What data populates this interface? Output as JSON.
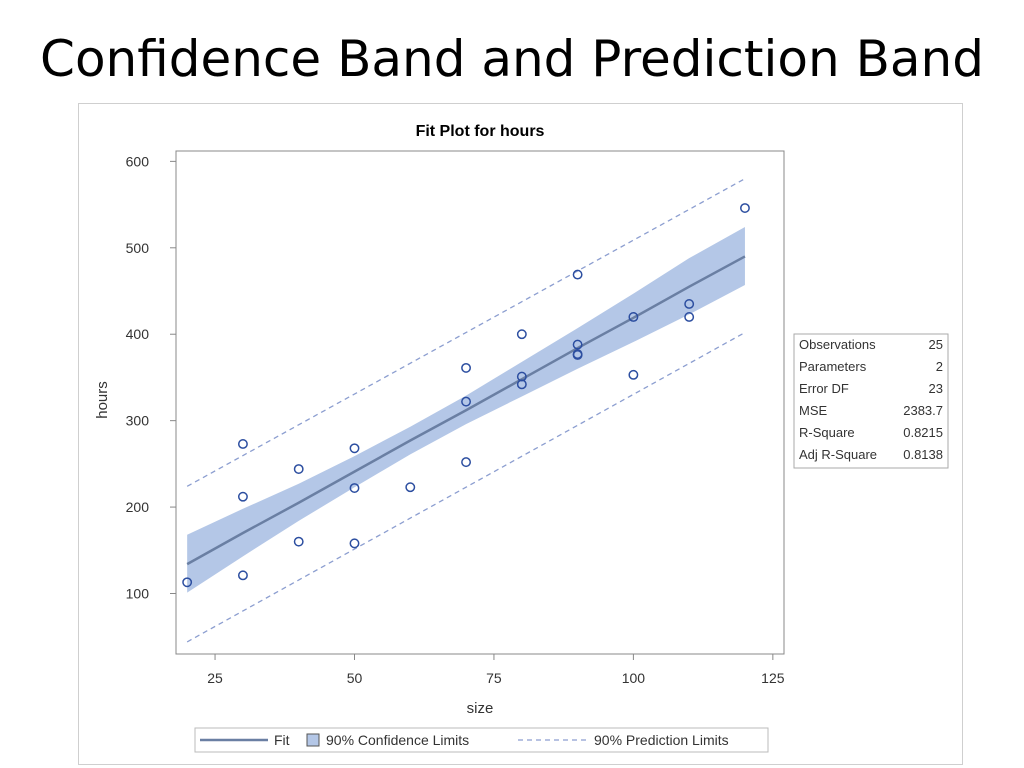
{
  "slide": {
    "title": "Confidence Band and Prediction Band"
  },
  "chart_data": {
    "type": "scatter",
    "title": "Fit Plot for hours",
    "xlabel": "size",
    "ylabel": "hours",
    "xlim": [
      18,
      127
    ],
    "ylim": [
      30,
      612
    ],
    "x_ticks": [
      25,
      50,
      75,
      100,
      125
    ],
    "y_ticks": [
      100,
      200,
      300,
      400,
      500,
      600
    ],
    "grid": false,
    "points": [
      {
        "x": 20,
        "y": 113
      },
      {
        "x": 30,
        "y": 273
      },
      {
        "x": 30,
        "y": 212
      },
      {
        "x": 30,
        "y": 121
      },
      {
        "x": 40,
        "y": 244
      },
      {
        "x": 40,
        "y": 160
      },
      {
        "x": 50,
        "y": 268
      },
      {
        "x": 50,
        "y": 222
      },
      {
        "x": 50,
        "y": 158
      },
      {
        "x": 60,
        "y": 223
      },
      {
        "x": 70,
        "y": 361
      },
      {
        "x": 70,
        "y": 322
      },
      {
        "x": 70,
        "y": 252
      },
      {
        "x": 80,
        "y": 400
      },
      {
        "x": 80,
        "y": 351
      },
      {
        "x": 80,
        "y": 342
      },
      {
        "x": 90,
        "y": 469
      },
      {
        "x": 90,
        "y": 388
      },
      {
        "x": 90,
        "y": 377
      },
      {
        "x": 90,
        "y": 376
      },
      {
        "x": 100,
        "y": 420
      },
      {
        "x": 100,
        "y": 353
      },
      {
        "x": 110,
        "y": 435
      },
      {
        "x": 110,
        "y": 420
      },
      {
        "x": 120,
        "y": 546
      }
    ],
    "fit": {
      "x": [
        20,
        30,
        40,
        50,
        60,
        70,
        80,
        90,
        100,
        110,
        120
      ],
      "y": [
        134,
        170,
        205,
        241,
        277,
        312,
        348,
        384,
        419,
        455,
        490
      ]
    },
    "confidence_band": {
      "x": [
        20,
        30,
        40,
        50,
        60,
        70,
        80,
        90,
        100,
        110,
        120
      ],
      "lower": [
        101,
        143,
        184,
        223,
        261,
        296,
        328,
        360,
        391,
        423,
        457
      ],
      "upper": [
        168,
        198,
        227,
        259,
        293,
        329,
        368,
        407,
        447,
        488,
        524
      ]
    },
    "prediction_band": {
      "x": [
        20,
        120
      ],
      "lower": [
        44,
        402
      ],
      "upper": [
        224,
        580
      ]
    },
    "fit_statistics": [
      {
        "label": "Observations",
        "value": "25"
      },
      {
        "label": "Parameters",
        "value": "2"
      },
      {
        "label": "Error DF",
        "value": "23"
      },
      {
        "label": "MSE",
        "value": "2383.7"
      },
      {
        "label": "R-Square",
        "value": "0.8215"
      },
      {
        "label": "Adj R-Square",
        "value": "0.8138"
      }
    ],
    "legend": {
      "position": "bottom",
      "entries": [
        {
          "label": "Fit",
          "style": "solid-line"
        },
        {
          "label": "90% Confidence Limits",
          "style": "filled-band"
        },
        {
          "label": "90% Prediction Limits",
          "style": "dashed-line"
        }
      ]
    },
    "colors": {
      "fit_line": "#6a7fa3",
      "confidence_fill": "#b4c7e7",
      "prediction_line": "#8c9ed0",
      "marker": "#2c4ea0",
      "axis": "#888888"
    }
  }
}
